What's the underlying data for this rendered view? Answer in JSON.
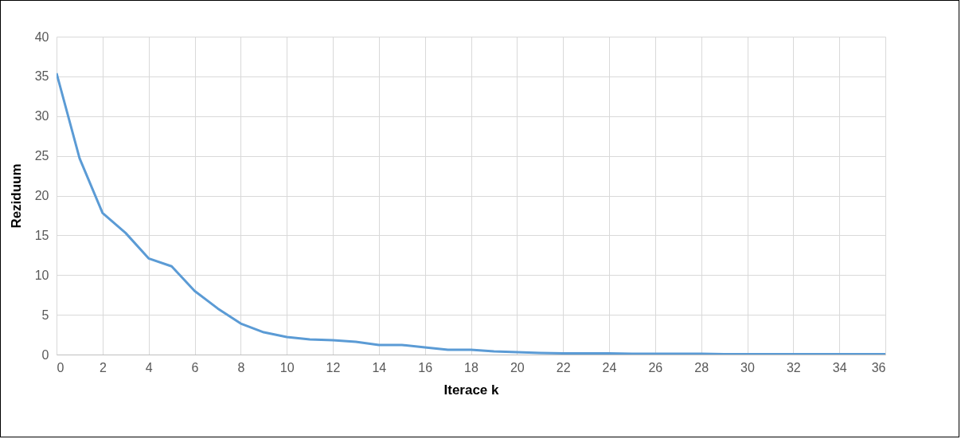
{
  "chart_data": {
    "type": "line",
    "xlabel": "Iterace k",
    "ylabel": "Reziduum",
    "x": [
      0,
      1,
      2,
      3,
      4,
      5,
      6,
      7,
      8,
      9,
      10,
      11,
      12,
      13,
      14,
      15,
      16,
      17,
      18,
      19,
      20,
      21,
      22,
      23,
      24,
      25,
      26,
      27,
      28,
      29,
      30,
      31,
      32,
      33,
      34,
      35,
      36
    ],
    "series": [
      {
        "color": "#5b9bd5",
        "values": [
          35.4,
          24.7,
          17.8,
          15.3,
          12.1,
          11.1,
          8.0,
          5.8,
          3.9,
          2.8,
          2.2,
          1.9,
          1.8,
          1.6,
          1.2,
          1.2,
          0.9,
          0.6,
          0.6,
          0.4,
          0.3,
          0.2,
          0.15,
          0.15,
          0.15,
          0.1,
          0.1,
          0.1,
          0.1,
          0.05,
          0.05,
          0.05,
          0.05,
          0.05,
          0.05,
          0.05,
          0.05
        ]
      }
    ],
    "xlim": [
      0,
      36
    ],
    "xticks": [
      0,
      2,
      4,
      6,
      8,
      10,
      12,
      14,
      16,
      18,
      20,
      22,
      24,
      26,
      28,
      30,
      32,
      34,
      36
    ],
    "ylim": [
      0,
      40
    ],
    "yticks": [
      0,
      5,
      10,
      15,
      20,
      25,
      30,
      35,
      40
    ],
    "grid": true,
    "marker": "none",
    "line_style": "solid"
  }
}
